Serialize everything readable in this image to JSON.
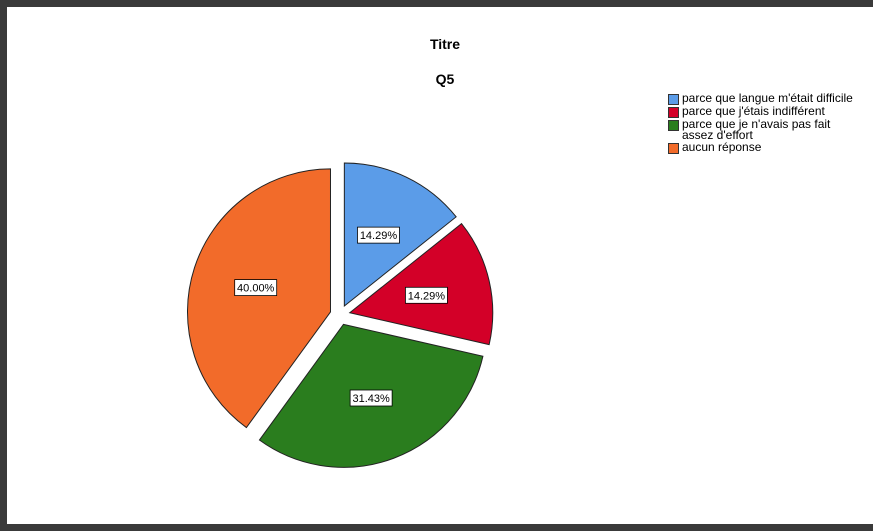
{
  "chart_data": {
    "type": "pie",
    "title": "Titre",
    "subtitle": "Q5",
    "legend_position": "top-right",
    "exploded": true,
    "slices": [
      {
        "label": "parce que langue m'était  difficile",
        "value": 14.29,
        "display": "14.29%",
        "color": "#5b9ce8"
      },
      {
        "label": "parce que j'étais indifférent",
        "value": 14.29,
        "display": "14.29%",
        "color": "#d30028"
      },
      {
        "label": "parce que je n'avais pas fait\nassez d'effort",
        "value": 31.43,
        "display": "31.43%",
        "color": "#2a7d1e"
      },
      {
        "label": "aucun réponse",
        "value": 40.0,
        "display": "40.00%",
        "color": "#f26b2a"
      }
    ]
  }
}
